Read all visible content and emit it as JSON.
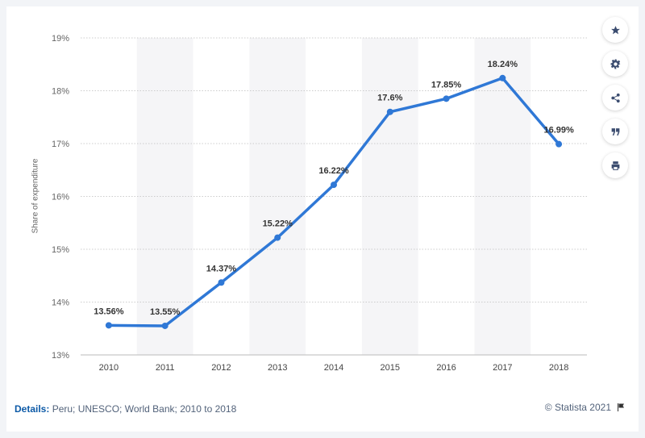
{
  "chart_data": {
    "type": "line",
    "ylabel": "Share of expenditure",
    "categories": [
      "2010",
      "2011",
      "2012",
      "2013",
      "2014",
      "2015",
      "2016",
      "2017",
      "2018"
    ],
    "values": [
      13.56,
      13.55,
      14.37,
      15.22,
      16.22,
      17.6,
      17.85,
      18.24,
      16.99
    ],
    "data_labels": [
      "13.56%",
      "13.55%",
      "14.37%",
      "15.22%",
      "16.22%",
      "17.6%",
      "17.85%",
      "18.24%",
      "16.99%"
    ],
    "ylim": [
      13,
      19
    ],
    "yticks": [
      "13%",
      "14%",
      "15%",
      "16%",
      "17%",
      "18%",
      "19%"
    ],
    "grid": true,
    "line_color": "#2f78d6"
  },
  "footer": {
    "details_label": "Details:",
    "details_text": "Peru; UNESCO; World Bank; 2010 to 2018",
    "credit": "© Statista 2021"
  },
  "toolbar": {
    "icons": [
      "star-icon",
      "gear-icon",
      "share-icon",
      "quote-icon",
      "print-icon"
    ]
  }
}
